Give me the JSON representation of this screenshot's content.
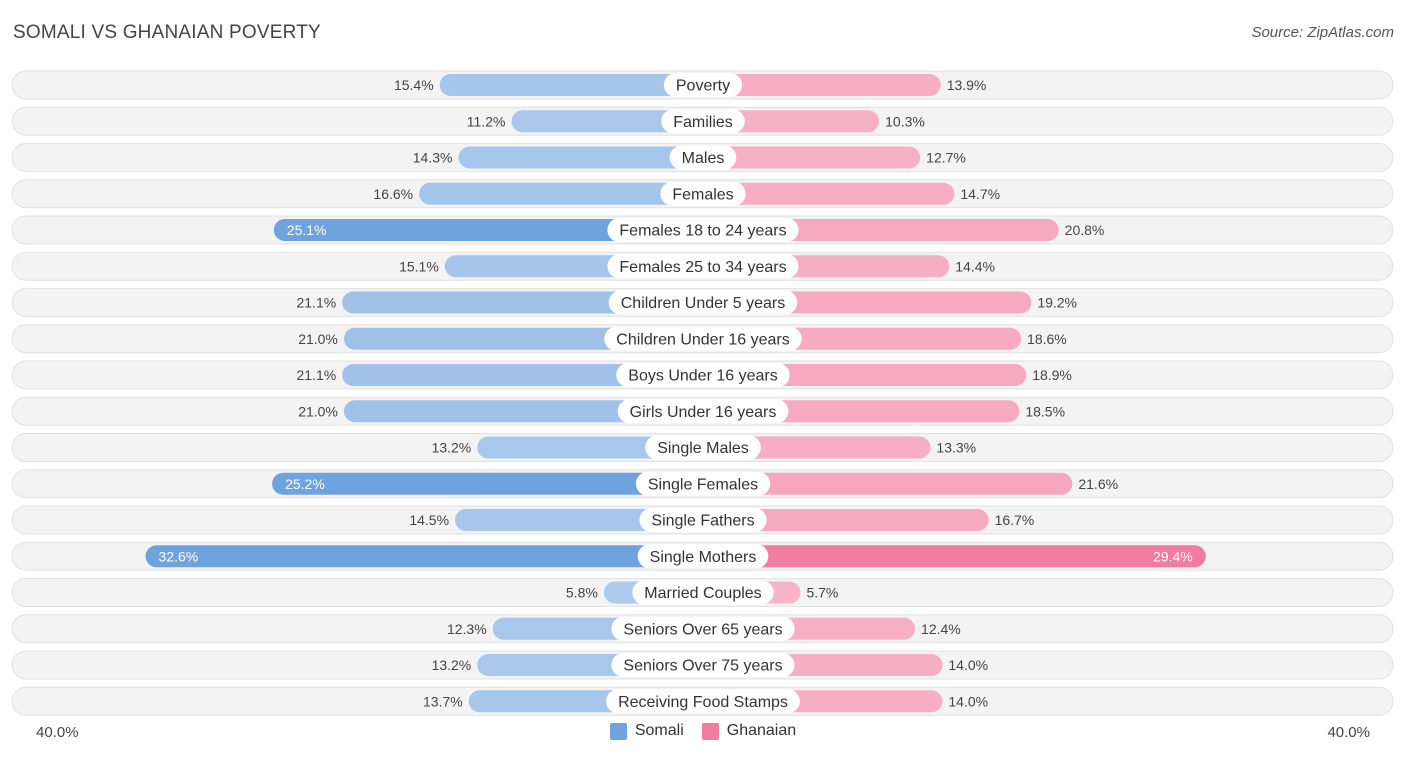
{
  "title": "SOMALI VS GHANAIAN POVERTY",
  "source": "Source: ZipAtlas.com",
  "axis": {
    "left_label": "40.0%",
    "right_label": "40.0%"
  },
  "legend": [
    {
      "name": "Somali",
      "color": "#6fa3de"
    },
    {
      "name": "Ghanaian",
      "color": "#f27ba0"
    }
  ],
  "chart_data": {
    "type": "bar",
    "orientation": "horizontal-diverging",
    "title": "SOMALI VS GHANAIAN POVERTY",
    "xlim": [
      -40,
      40
    ],
    "unit": "%",
    "categories": [
      "Poverty",
      "Families",
      "Males",
      "Females",
      "Females 18 to 24 years",
      "Females 25 to 34 years",
      "Children Under 5 years",
      "Children Under 16 years",
      "Boys Under 16 years",
      "Girls Under 16 years",
      "Single Males",
      "Single Females",
      "Single Fathers",
      "Single Mothers",
      "Married Couples",
      "Seniors Over 65 years",
      "Seniors Over 75 years",
      "Receiving Food Stamps"
    ],
    "series": [
      {
        "name": "Somali",
        "color": "#6fa3de",
        "values": [
          15.4,
          11.2,
          14.3,
          16.6,
          25.1,
          15.1,
          21.1,
          21.0,
          21.1,
          21.0,
          13.2,
          25.2,
          14.5,
          32.6,
          5.8,
          12.3,
          13.2,
          13.7
        ],
        "labels": [
          "15.4%",
          "11.2%",
          "14.3%",
          "16.6%",
          "25.1%",
          "15.1%",
          "21.1%",
          "21.0%",
          "21.1%",
          "21.0%",
          "13.2%",
          "25.2%",
          "14.5%",
          "32.6%",
          "5.8%",
          "12.3%",
          "13.2%",
          "13.7%"
        ]
      },
      {
        "name": "Ghanaian",
        "color": "#f27ba0",
        "values": [
          13.9,
          10.3,
          12.7,
          14.7,
          20.8,
          14.4,
          19.2,
          18.6,
          18.9,
          18.5,
          13.3,
          21.6,
          16.7,
          29.4,
          5.7,
          12.4,
          14.0,
          14.0
        ],
        "labels": [
          "13.9%",
          "10.3%",
          "12.7%",
          "14.7%",
          "20.8%",
          "14.4%",
          "19.2%",
          "18.6%",
          "18.9%",
          "18.5%",
          "13.3%",
          "21.6%",
          "16.7%",
          "29.4%",
          "5.7%",
          "12.4%",
          "14.0%",
          "14.0%"
        ]
      }
    ]
  }
}
